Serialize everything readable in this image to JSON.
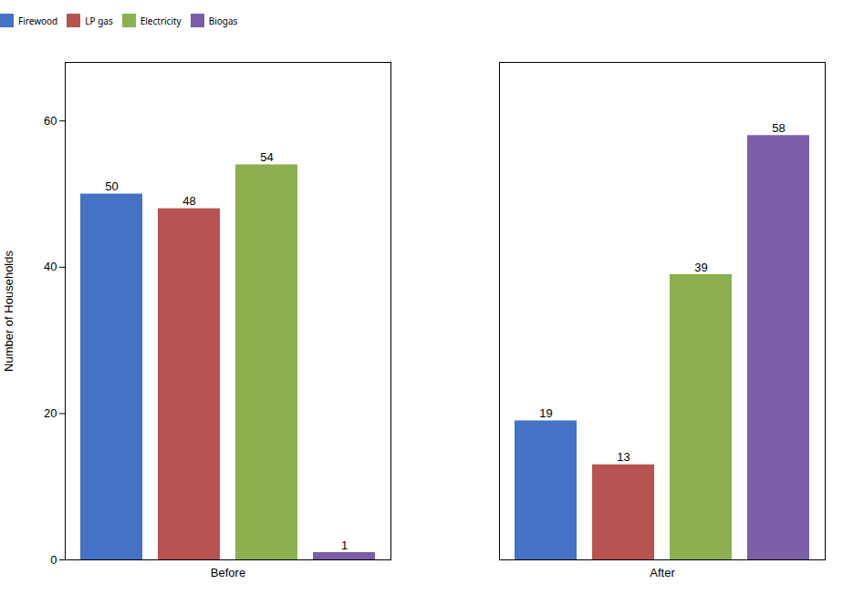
{
  "chart_data": {
    "type": "bar",
    "categories": [
      "Before",
      "After"
    ],
    "series": [
      {
        "name": "Firewood",
        "color": "#4472C4",
        "values": [
          50,
          19
        ]
      },
      {
        "name": "LP gas",
        "color": "#B85450",
        "values": [
          48,
          13
        ]
      },
      {
        "name": "Electricity",
        "color": "#8CB050",
        "values": [
          54,
          39
        ]
      },
      {
        "name": "Biogas",
        "color": "#7B5EA7",
        "values": [
          1,
          58
        ]
      }
    ],
    "ylabel": "Number of Households",
    "ylim": [
      0,
      68
    ],
    "yticks": [
      0,
      20,
      40,
      60
    ],
    "grid": false,
    "legend": "top",
    "data_labels": true
  }
}
